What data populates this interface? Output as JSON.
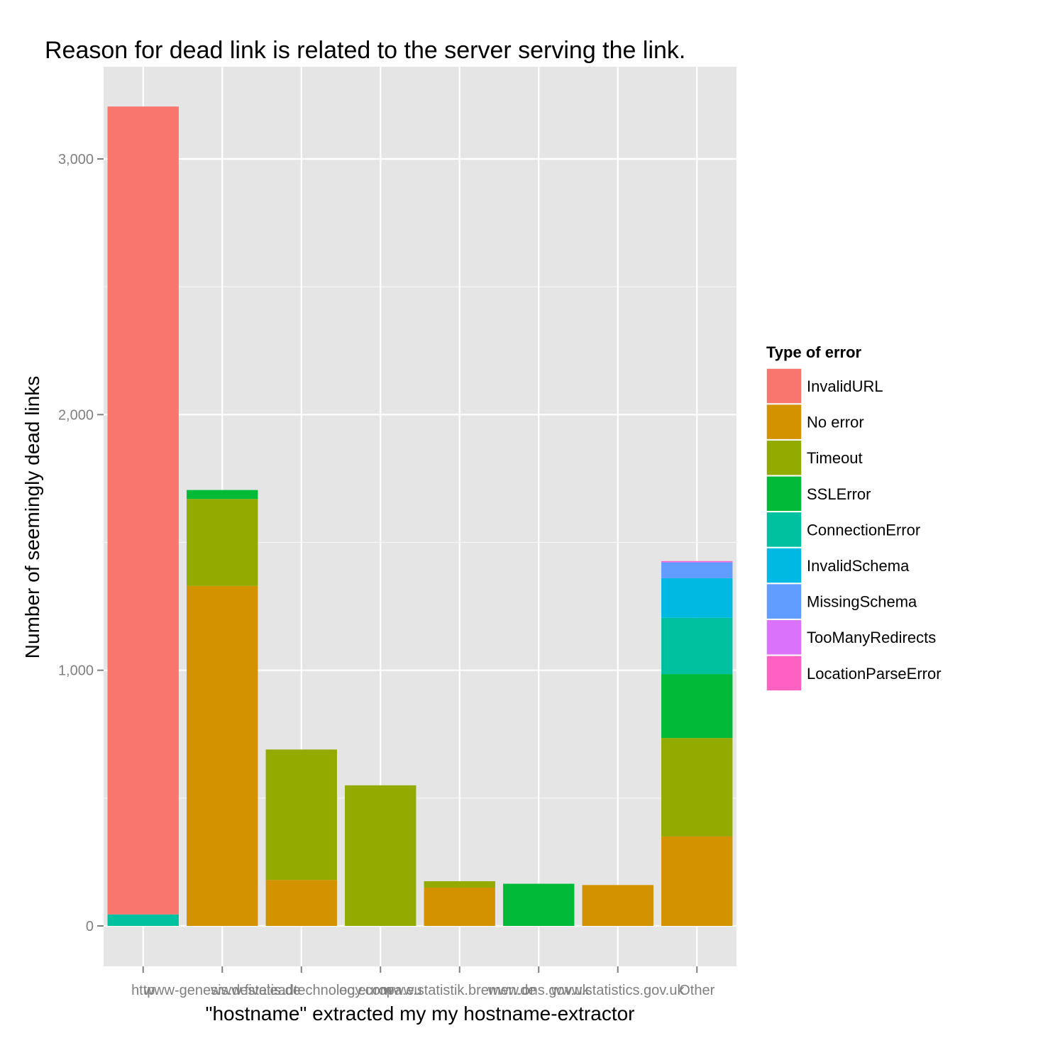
{
  "chart_data": {
    "type": "bar",
    "stacked": true,
    "title": "Reason for dead link is related to the server serving the link.",
    "xlabel": "\"hostname\" extracted my my hostname-extractor",
    "ylabel": "Number of seemingly dead links",
    "ylim": [
      -160,
      3160
    ],
    "yticks": [
      0,
      1000,
      2000,
      3000
    ],
    "ytick_labels": [
      "0",
      "1,000",
      "2,000",
      "3,000"
    ],
    "grid": true,
    "legend": {
      "title": "Type of error",
      "position": "right"
    },
    "categories": [
      "http",
      "www-genesis.destatis.de",
      "www.fiveleadtechnology.com",
      "ec.europa.eu",
      "www.statistik.bremen.de",
      "www.ons.gov.uk",
      "www.statistics.gov.uk",
      "Other"
    ],
    "category_label_text": "http  www-genesis.destatis.de  ...  www.statistics.gov.uk  nhs.uk  Other",
    "series": [
      {
        "name": "No error",
        "color": "#D39200",
        "values": [
          0,
          1330,
          180,
          0,
          150,
          0,
          160,
          350
        ]
      },
      {
        "name": "Timeout",
        "color": "#93AA00",
        "values": [
          0,
          340,
          510,
          550,
          25,
          0,
          0,
          385
        ]
      },
      {
        "name": "SSLError",
        "color": "#00BA38",
        "values": [
          0,
          35,
          0,
          0,
          0,
          165,
          0,
          250
        ]
      },
      {
        "name": "ConnectionError",
        "color": "#00C19F",
        "values": [
          45,
          0,
          0,
          0,
          0,
          0,
          0,
          220
        ]
      },
      {
        "name": "InvalidSchema",
        "color": "#00B9E3",
        "values": [
          0,
          0,
          0,
          0,
          0,
          0,
          0,
          155
        ]
      },
      {
        "name": "MissingSchema",
        "color": "#619CFF",
        "values": [
          0,
          0,
          0,
          0,
          0,
          0,
          0,
          62
        ]
      },
      {
        "name": "TooManyRedirects",
        "color": "#DB72FB",
        "values": [
          0,
          0,
          0,
          0,
          0,
          0,
          0,
          3
        ]
      },
      {
        "name": "LocationParseError",
        "color": "#FF61C3",
        "values": [
          0,
          0,
          0,
          0,
          0,
          0,
          0,
          2
        ]
      },
      {
        "name": "InvalidURL",
        "color": "#F8766D",
        "values": [
          3160,
          0,
          0,
          0,
          0,
          0,
          0,
          0
        ]
      }
    ],
    "legend_order": [
      "InvalidURL",
      "No error",
      "Timeout",
      "SSLError",
      "ConnectionError",
      "InvalidSchema",
      "MissingSchema",
      "TooManyRedirects",
      "LocationParseError"
    ]
  },
  "colors": {
    "panel_background": "#E5E5E5",
    "grid": "#FFFFFF",
    "tick": "#7f7f7f"
  }
}
